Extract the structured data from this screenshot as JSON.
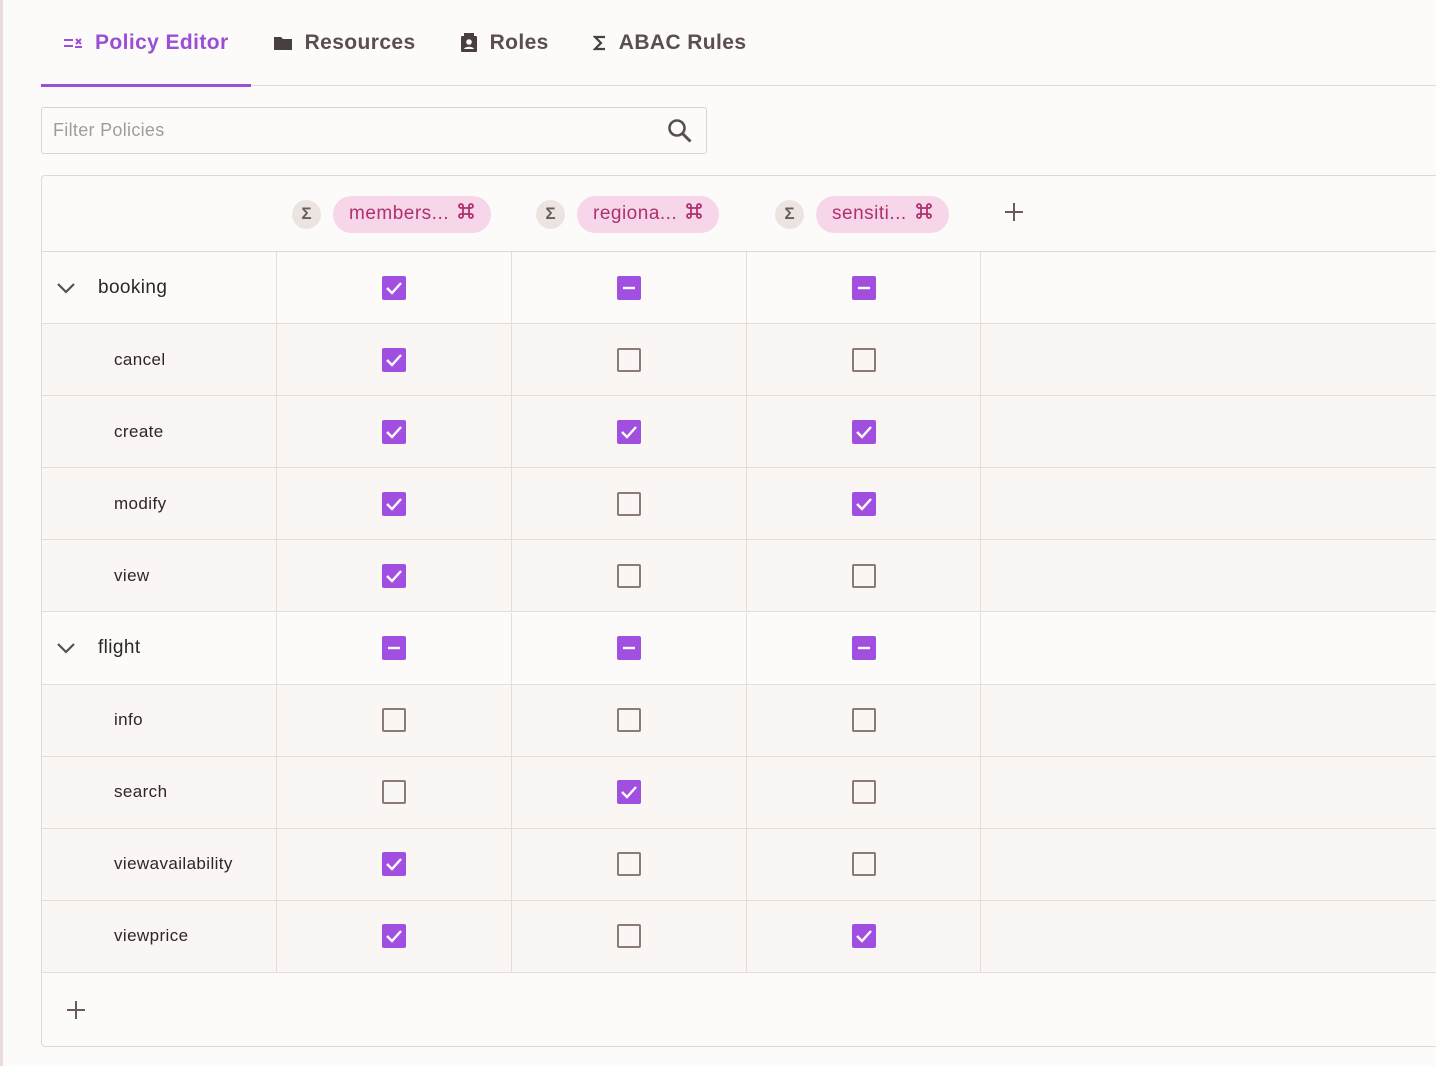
{
  "tabs": [
    {
      "label": "Policy Editor",
      "icon": "policy-editor-icon",
      "active": true
    },
    {
      "label": "Resources",
      "icon": "folder-icon",
      "active": false
    },
    {
      "label": "Roles",
      "icon": "roles-icon",
      "active": false
    },
    {
      "label": "ABAC Rules",
      "icon": "sigma-icon",
      "active": false
    }
  ],
  "filter": {
    "placeholder": "Filter Policies",
    "value": ""
  },
  "columns": [
    {
      "badge": "Σ",
      "label": "members..."
    },
    {
      "badge": "Σ",
      "label": "regiona..."
    },
    {
      "badge": "Σ",
      "label": "sensiti..."
    }
  ],
  "rows": [
    {
      "type": "parent",
      "label": "booking",
      "states": [
        "checked",
        "indeterminate",
        "indeterminate"
      ]
    },
    {
      "type": "child",
      "label": "cancel",
      "states": [
        "checked",
        "unchecked",
        "unchecked"
      ]
    },
    {
      "type": "child",
      "label": "create",
      "states": [
        "checked",
        "checked",
        "checked"
      ]
    },
    {
      "type": "child",
      "label": "modify",
      "states": [
        "checked",
        "unchecked",
        "checked"
      ]
    },
    {
      "type": "child",
      "label": "view",
      "states": [
        "checked",
        "unchecked",
        "unchecked"
      ]
    },
    {
      "type": "parent",
      "label": "flight",
      "states": [
        "indeterminate",
        "indeterminate",
        "indeterminate"
      ]
    },
    {
      "type": "child",
      "label": "info",
      "states": [
        "unchecked",
        "unchecked",
        "unchecked"
      ]
    },
    {
      "type": "child",
      "label": "search",
      "states": [
        "unchecked",
        "checked",
        "unchecked"
      ]
    },
    {
      "type": "child",
      "label": "viewavailability",
      "states": [
        "checked",
        "unchecked",
        "unchecked"
      ]
    },
    {
      "type": "child",
      "label": "viewprice",
      "states": [
        "checked",
        "unchecked",
        "checked"
      ]
    }
  ],
  "colors": {
    "accent": "#9a4fd6",
    "checkbox": "#a04fe0",
    "chip_bg": "#f6d6e8",
    "chip_text": "#b0306e"
  }
}
